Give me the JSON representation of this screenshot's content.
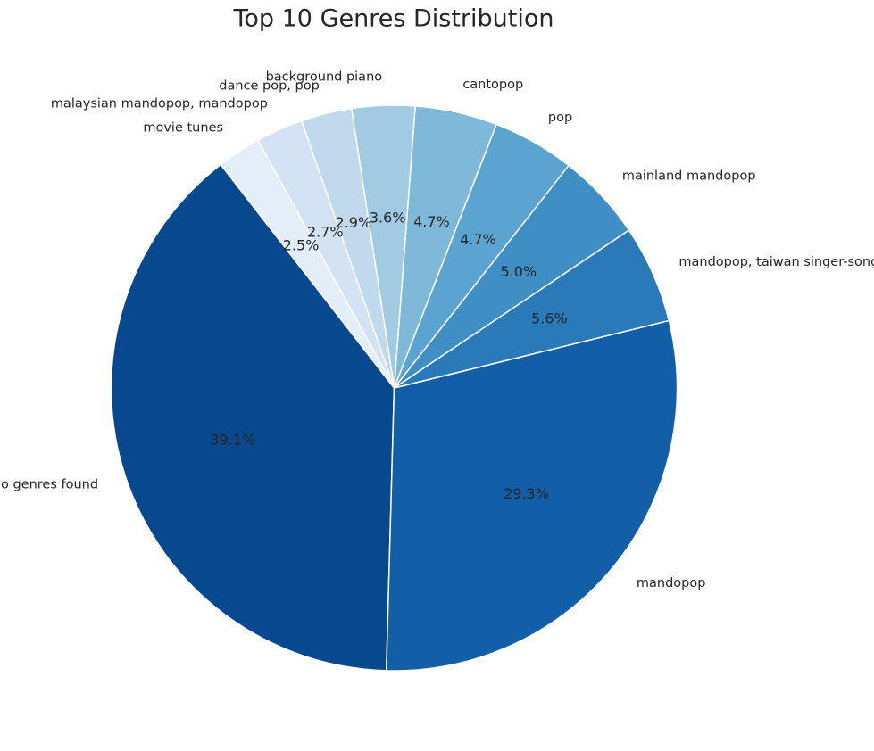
{
  "chart_data": {
    "type": "pie",
    "title": "Top 10 Genres Distribution",
    "slices": [
      {
        "label": "no genres found",
        "value": 39.1,
        "pct_label": "39.1%",
        "color": "#08488e"
      },
      {
        "label": "mandopop",
        "value": 29.3,
        "pct_label": "29.3%",
        "color": "#135fa7"
      },
      {
        "label": "mandopop, taiwan singer-songwriter",
        "value": 5.6,
        "pct_label": "5.6%",
        "color": "#2a7ab9"
      },
      {
        "label": "mainland mandopop",
        "value": 5.0,
        "pct_label": "5.0%",
        "color": "#3f8fc5"
      },
      {
        "label": "pop",
        "value": 4.7,
        "pct_label": "4.7%",
        "color": "#5ba3d0"
      },
      {
        "label": "cantopop",
        "value": 4.7,
        "pct_label": "4.7%",
        "color": "#7fb9da"
      },
      {
        "label": "background piano",
        "value": 3.6,
        "pct_label": "3.6%",
        "color": "#a0cbe2"
      },
      {
        "label": "dance pop, pop",
        "value": 2.9,
        "pct_label": "2.9%",
        "color": "#c1d9ed"
      },
      {
        "label": "malaysian mandopop, mandopop",
        "value": 2.7,
        "pct_label": "2.7%",
        "color": "#d3e3f3"
      },
      {
        "label": "movie tunes",
        "value": 2.5,
        "pct_label": "2.5%",
        "color": "#e3eef9"
      }
    ],
    "start_angle_deg": 127.8,
    "direction": "counterclockwise",
    "legend": "none"
  }
}
